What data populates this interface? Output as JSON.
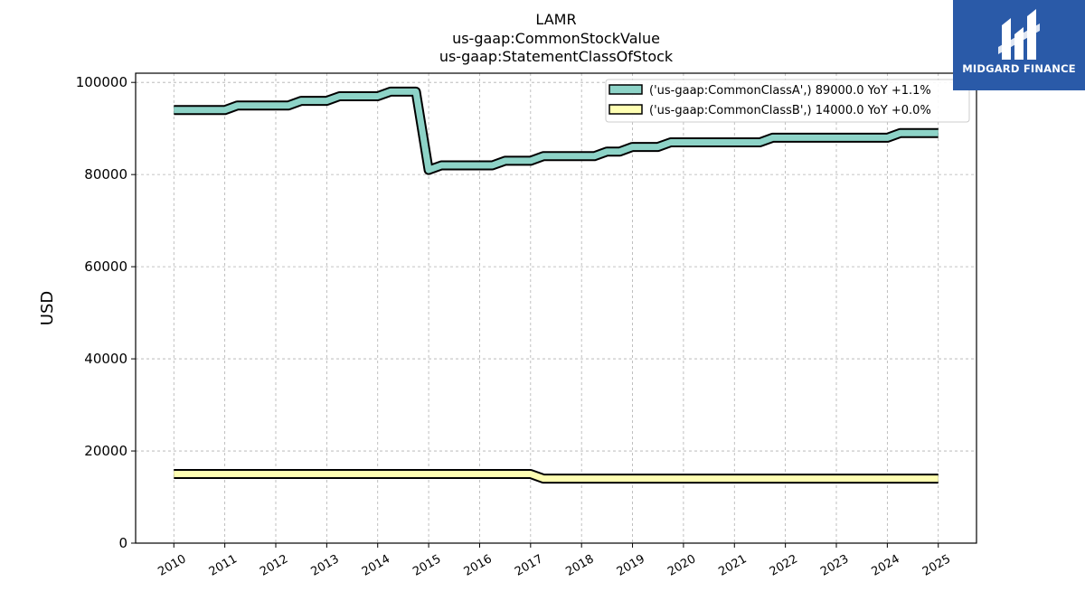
{
  "brand": {
    "name": "MIDGARD FINANCE",
    "bg_color": "#2a5aa8",
    "icon": "midgard-logo-icon"
  },
  "chart_data": {
    "type": "line",
    "title_lines": [
      "LAMR",
      "us-gaap:CommonStockValue",
      "us-gaap:StatementClassOfStock"
    ],
    "ylabel": "USD",
    "xlabel": "",
    "ylim": [
      0,
      102000
    ],
    "yticks": [
      0,
      20000,
      40000,
      60000,
      80000,
      100000
    ],
    "xlim": [
      2009.25,
      2025.75
    ],
    "xticks": [
      "2010",
      "2011",
      "2012",
      "2013",
      "2014",
      "2015",
      "2016",
      "2017",
      "2018",
      "2019",
      "2020",
      "2021",
      "2022",
      "2023",
      "2024",
      "2025"
    ],
    "grid": true,
    "legend_position": "top-right",
    "series": [
      {
        "name": "('us-gaap:CommonClassA',) 89000.0 YoY +1.1%",
        "color": "#8dd3c7",
        "x": [
          2010.0,
          2011.0,
          2011.25,
          2012.25,
          2012.5,
          2013.0,
          2013.25,
          2014.0,
          2014.25,
          2014.75,
          2015.0,
          2015.25,
          2016.25,
          2016.5,
          2017.0,
          2017.25,
          2018.25,
          2018.5,
          2018.75,
          2019.0,
          2019.5,
          2019.75,
          2020.0,
          2021.0,
          2021.5,
          2021.75,
          2022.0,
          2023.0,
          2024.0,
          2024.25,
          2025.0
        ],
        "y": [
          94000,
          94000,
          95000,
          95000,
          96000,
          96000,
          97000,
          97000,
          98000,
          98000,
          81000,
          82000,
          82000,
          83000,
          83000,
          84000,
          84000,
          85000,
          85000,
          86000,
          86000,
          87000,
          87000,
          87000,
          87000,
          88000,
          88000,
          88000,
          88000,
          89000,
          89000
        ]
      },
      {
        "name": "('us-gaap:CommonClassB',) 14000.0 YoY +0.0%",
        "color": "#ffffb3",
        "x": [
          2010.0,
          2016.0,
          2017.0,
          2017.25,
          2018.0,
          2020.0,
          2022.0,
          2024.0,
          2025.0
        ],
        "y": [
          15000,
          15000,
          15000,
          14000,
          14000,
          14000,
          14000,
          14000,
          14000
        ]
      }
    ]
  }
}
